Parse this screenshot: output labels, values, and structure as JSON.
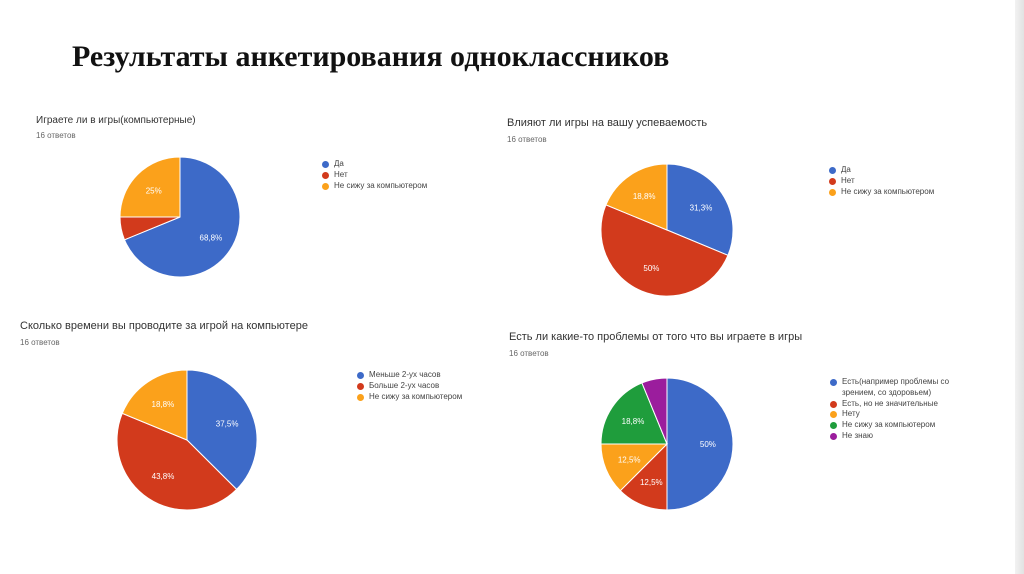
{
  "slide": {
    "title": "Результаты анкетирования одноклассников"
  },
  "colors": {
    "blue": "#3d6ac8",
    "red": "#d23a1c",
    "orange": "#fba11b",
    "green": "#1f9d3c",
    "purple": "#9b1d9d"
  },
  "chart_data": [
    {
      "type": "pie",
      "title": "Играете ли в игры(компьютерные)",
      "subtitle": "16 ответов",
      "legend_position": "right",
      "series": [
        {
          "name": "Да",
          "value": 68.8,
          "label": "68,8%",
          "color": "#3d6ac8"
        },
        {
          "name": "Нет",
          "value": 6.2,
          "label": "",
          "color": "#d23a1c"
        },
        {
          "name": "Не сижу за компьютером",
          "value": 25,
          "label": "25%",
          "color": "#fba11b"
        }
      ]
    },
    {
      "type": "pie",
      "title": "Влияют ли игры на вашу успеваемость",
      "subtitle": "16 ответов",
      "legend_position": "right",
      "series": [
        {
          "name": "Да",
          "value": 31.3,
          "label": "31,3%",
          "color": "#3d6ac8"
        },
        {
          "name": "Нет",
          "value": 50,
          "label": "50%",
          "color": "#d23a1c"
        },
        {
          "name": "Не сижу за компьютером",
          "value": 18.8,
          "label": "18,8%",
          "color": "#fba11b"
        }
      ]
    },
    {
      "type": "pie",
      "title": "Сколько времени вы проводите за игрой на компьютере",
      "subtitle": "16 ответов",
      "legend_position": "right",
      "series": [
        {
          "name": "Меньше 2-ух часов",
          "value": 37.5,
          "label": "37,5%",
          "color": "#3d6ac8"
        },
        {
          "name": "Больше 2-ух часов",
          "value": 43.8,
          "label": "43,8%",
          "color": "#d23a1c"
        },
        {
          "name": "Не сижу за компьютером",
          "value": 18.8,
          "label": "18,8%",
          "color": "#fba11b"
        }
      ]
    },
    {
      "type": "pie",
      "title": "Есть ли какие-то проблемы от того что вы играете в игры",
      "subtitle": "16 ответов",
      "legend_position": "right",
      "series": [
        {
          "name": "Есть(например проблемы со зрением, со здоровьем)",
          "value": 50,
          "label": "50%",
          "color": "#3d6ac8"
        },
        {
          "name": "Есть, но не значительные",
          "value": 12.5,
          "label": "12,5%",
          "color": "#d23a1c"
        },
        {
          "name": "Нету",
          "value": 12.5,
          "label": "12,5%",
          "color": "#fba11b"
        },
        {
          "name": "Не сижу за компьютером",
          "value": 18.8,
          "label": "18,8%",
          "color": "#1f9d3c"
        },
        {
          "name": "Не знаю",
          "value": 6.2,
          "label": "",
          "color": "#9b1d9d"
        }
      ]
    }
  ]
}
